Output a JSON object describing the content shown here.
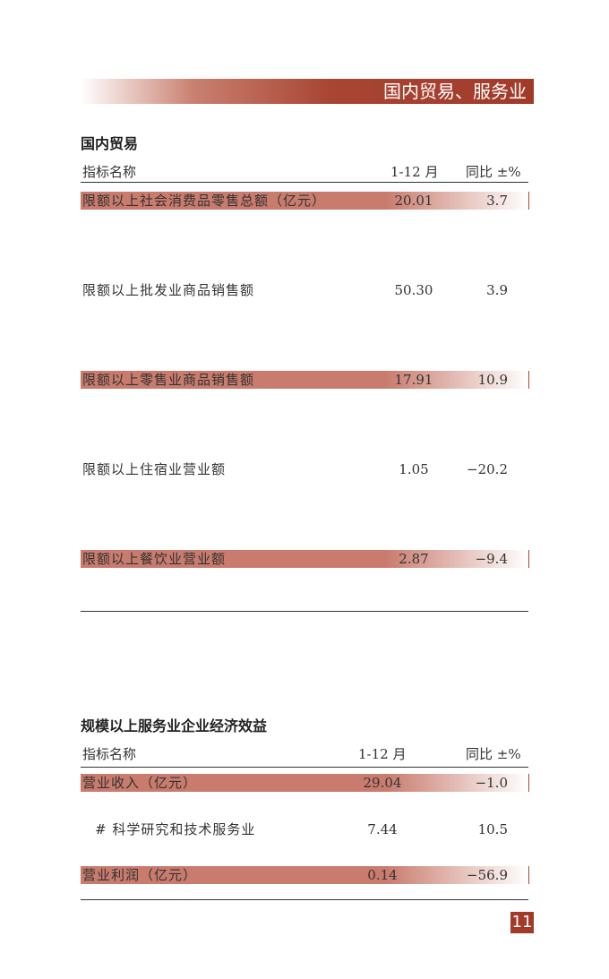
{
  "banner": {
    "title": "国内贸易、服务业"
  },
  "domestic_trade": {
    "title": "国内贸易",
    "headers": [
      "指标名称",
      "1-12 月",
      "同比 ±%"
    ],
    "rows": [
      {
        "name": "限额以上社会消费品零售总额（亿元）",
        "value": "20.01",
        "yoy": "3.7",
        "highlight": true
      },
      {
        "name": "限额以上批发业商品销售额",
        "value": "50.30",
        "yoy": "3.9",
        "highlight": false
      },
      {
        "name": "限额以上零售业商品销售额",
        "value": "17.91",
        "yoy": "10.9",
        "highlight": true
      },
      {
        "name": "限额以上住宿业营业额",
        "value": "1.05",
        "yoy": "−20.2",
        "highlight": false
      },
      {
        "name": "限额以上餐饮业营业额",
        "value": "2.87",
        "yoy": "−9.4",
        "highlight": true
      }
    ]
  },
  "services": {
    "title": "规模以上服务业企业经济效益",
    "headers": [
      "指标名称",
      "1-12 月",
      "同比 ±%"
    ],
    "rows": [
      {
        "name": "营业收入（亿元）",
        "value": "29.04",
        "yoy": "−1.0",
        "highlight": true
      },
      {
        "name": "# 科学研究和技术服务业",
        "value": "7.44",
        "yoy": "10.5",
        "highlight": false
      },
      {
        "name": "营业利润（亿元）",
        "value": "0.14",
        "yoy": "−56.9",
        "highlight": true
      }
    ]
  },
  "page_number": "11",
  "colors": {
    "accent": "#a23a2a",
    "highlight": "#c97b6d"
  }
}
